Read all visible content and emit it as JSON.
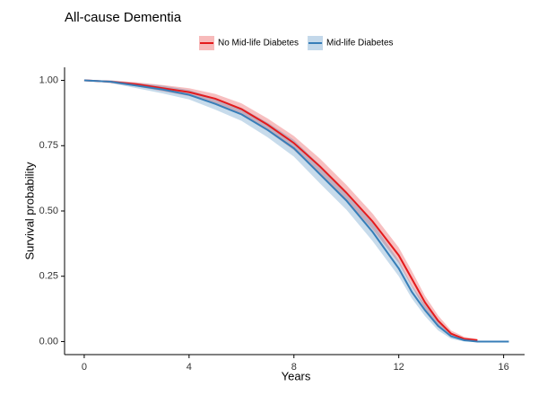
{
  "chart_data": {
    "type": "survival",
    "title": "All-cause Dementia",
    "x_label": "Years",
    "y_label": "Survival probability",
    "x": [
      0,
      1,
      2,
      3,
      4,
      5,
      6,
      7,
      8,
      9,
      10,
      11,
      12,
      12.5,
      13,
      13.5,
      14,
      14.5,
      15,
      15.5,
      16.2
    ],
    "series": [
      {
        "name": "No Mid-life Diabetes",
        "color": "#e41a1c",
        "values": [
          1,
          0.995,
          0.985,
          0.97,
          0.955,
          0.93,
          0.89,
          0.83,
          0.76,
          0.67,
          0.57,
          0.46,
          0.33,
          0.24,
          0.15,
          0.08,
          0.03,
          0.01,
          0.005,
          null,
          null
        ],
        "lower": [
          1,
          0.99,
          0.977,
          0.958,
          0.94,
          0.912,
          0.868,
          0.806,
          0.733,
          0.64,
          0.54,
          0.43,
          0.3,
          0.21,
          0.125,
          0.06,
          0.018,
          0.003,
          0,
          null,
          null
        ],
        "upper": [
          1,
          1,
          0.993,
          0.982,
          0.97,
          0.948,
          0.912,
          0.854,
          0.787,
          0.7,
          0.6,
          0.49,
          0.36,
          0.27,
          0.175,
          0.1,
          0.042,
          0.018,
          0.01,
          null,
          null
        ]
      },
      {
        "name": "Mid-life Diabetes",
        "color": "#377eb8",
        "values": [
          1,
          0.995,
          0.98,
          0.965,
          0.945,
          0.91,
          0.87,
          0.81,
          0.74,
          0.64,
          0.54,
          0.42,
          0.28,
          0.19,
          0.12,
          0.06,
          0.02,
          0.005,
          0,
          0,
          0
        ],
        "lower": [
          1,
          0.99,
          0.97,
          0.95,
          0.927,
          0.888,
          0.845,
          0.782,
          0.708,
          0.605,
          0.505,
          0.385,
          0.25,
          0.165,
          0.098,
          0.043,
          0.01,
          0,
          0,
          0,
          0
        ],
        "upper": [
          1,
          1,
          0.99,
          0.98,
          0.963,
          0.932,
          0.895,
          0.838,
          0.772,
          0.675,
          0.575,
          0.455,
          0.31,
          0.215,
          0.142,
          0.077,
          0.03,
          0.012,
          0.003,
          0,
          0
        ]
      }
    ],
    "xlim": [
      -0.75,
      16.8
    ],
    "ylim": [
      -0.05,
      1.05
    ],
    "xticks": [
      0,
      4,
      8,
      12,
      16
    ],
    "yticks": [
      {
        "value": 0,
        "label": "0.00"
      },
      {
        "value": 0.25,
        "label": "0.25"
      },
      {
        "value": 0.5,
        "label": "0.50"
      },
      {
        "value": 0.75,
        "label": "0.75"
      },
      {
        "value": 1,
        "label": "1.00"
      }
    ],
    "legend": "top"
  }
}
